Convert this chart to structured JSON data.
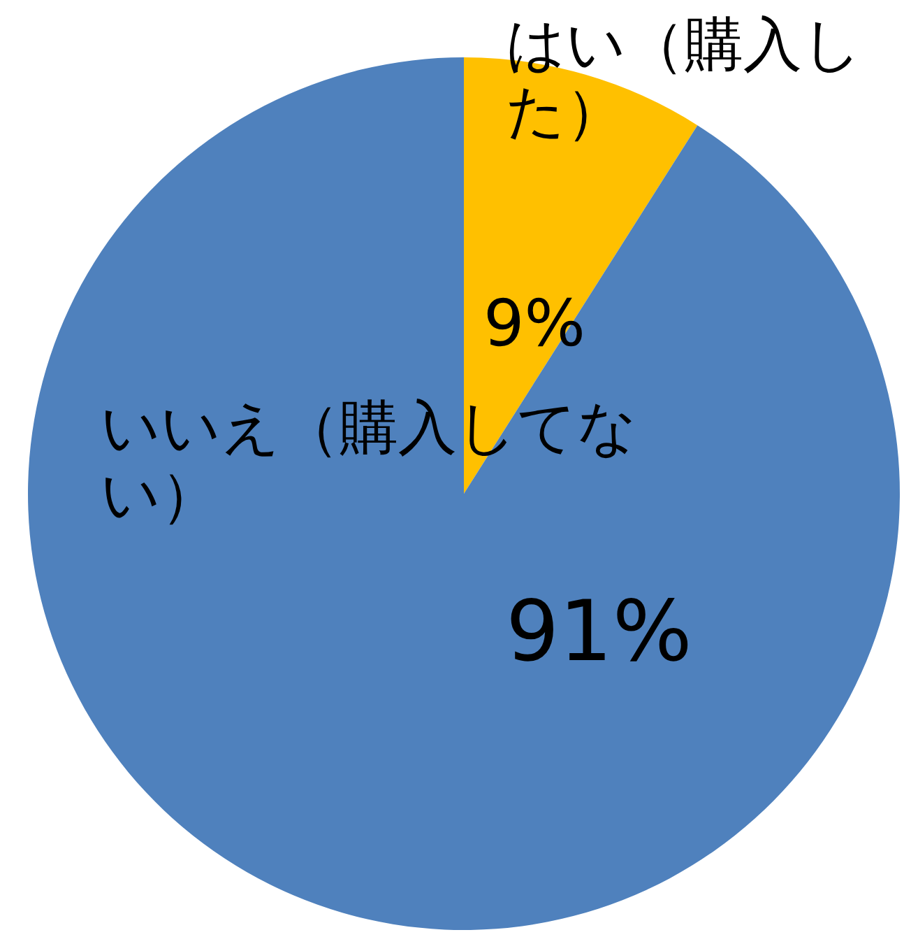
{
  "chart_data": {
    "type": "pie",
    "categories": [
      "はい（購入した）",
      "いいえ（購入してない）"
    ],
    "values": [
      9,
      91
    ],
    "colors": [
      "#ffc000",
      "#4f81bd"
    ],
    "value_labels": [
      "9%",
      "91%"
    ]
  }
}
